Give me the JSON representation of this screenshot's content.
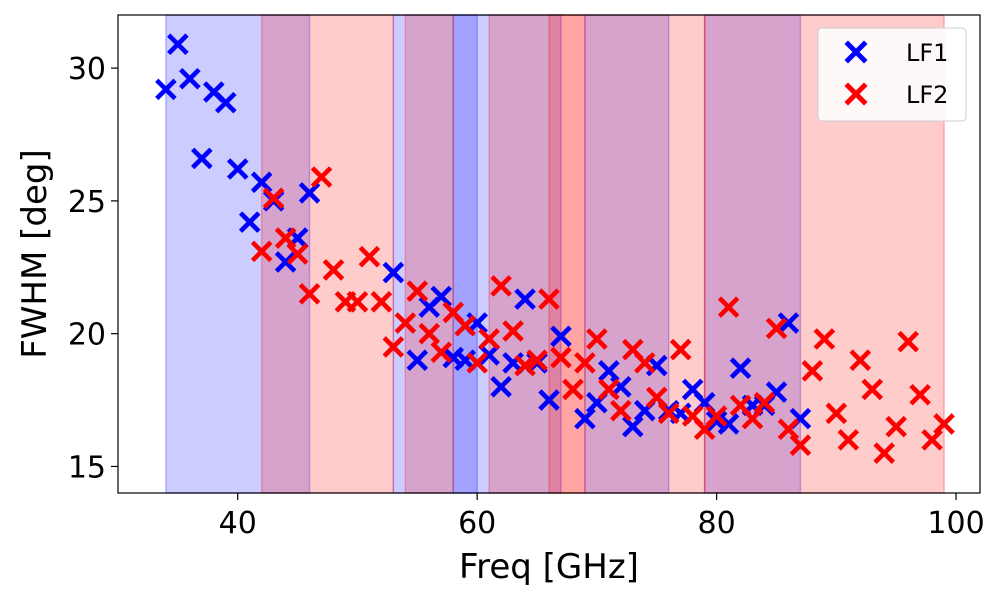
{
  "chart_data": {
    "type": "scatter",
    "title": "",
    "xlabel": "Freq [GHz]",
    "ylabel": "FWHM [deg]",
    "xlim": [
      30,
      102
    ],
    "ylim": [
      14,
      32
    ],
    "xticks": [
      40,
      60,
      80,
      100
    ],
    "yticks": [
      15,
      20,
      25,
      30
    ],
    "grid": false,
    "legend_position": "top-right",
    "marker": "X",
    "colors": {
      "LF1": "#0000ff",
      "LF2": "#ff0000",
      "band_LF1": "#0000ff",
      "band_LF2": "#ff0000"
    },
    "bands": {
      "LF1": [
        [
          34,
          46
        ],
        [
          53,
          60
        ],
        [
          58,
          67
        ],
        [
          69,
          76
        ],
        [
          79,
          87
        ]
      ],
      "LF2": [
        [
          42,
          53
        ],
        [
          54,
          58
        ],
        [
          61,
          69
        ],
        [
          66,
          79
        ],
        [
          79,
          99
        ]
      ]
    },
    "series": [
      {
        "name": "LF1",
        "x": [
          34,
          35,
          36,
          37,
          38,
          39,
          40,
          41,
          42,
          43,
          44,
          45,
          46,
          53,
          55,
          56,
          57,
          58,
          59,
          60,
          61,
          62,
          63,
          64,
          65,
          66,
          67,
          69,
          70,
          71,
          72,
          73,
          74,
          75,
          76,
          77,
          78,
          79,
          80,
          81,
          82,
          83,
          84,
          85,
          86,
          87
        ],
        "y": [
          29.2,
          30.9,
          29.6,
          26.6,
          29.1,
          28.7,
          26.2,
          24.2,
          25.7,
          25.0,
          22.7,
          23.6,
          25.3,
          22.3,
          19.0,
          21.0,
          21.4,
          19.1,
          19.0,
          20.4,
          19.2,
          18.0,
          18.9,
          21.3,
          18.9,
          17.5,
          19.9,
          16.8,
          17.4,
          18.6,
          18.0,
          16.5,
          17.1,
          18.8,
          17.1,
          17.0,
          17.9,
          17.4,
          16.7,
          16.6,
          18.7,
          17.3,
          17.3,
          17.8,
          20.4,
          16.8
        ]
      },
      {
        "name": "LF2",
        "x": [
          42,
          43,
          44,
          45,
          46,
          47,
          48,
          49,
          50,
          51,
          52,
          53,
          54,
          55,
          56,
          57,
          58,
          59,
          60,
          61,
          62,
          63,
          64,
          65,
          66,
          67,
          68,
          69,
          70,
          71,
          72,
          73,
          74,
          75,
          76,
          77,
          78,
          79,
          80,
          81,
          82,
          83,
          84,
          85,
          86,
          87,
          88,
          89,
          90,
          91,
          92,
          93,
          94,
          95,
          96,
          97,
          98,
          99
        ],
        "y": [
          23.1,
          25.1,
          23.6,
          23.0,
          21.5,
          25.9,
          22.4,
          21.2,
          21.2,
          22.9,
          21.2,
          19.5,
          20.4,
          21.6,
          20.0,
          19.3,
          20.8,
          20.3,
          18.9,
          19.8,
          21.8,
          20.1,
          18.8,
          19.0,
          21.3,
          19.1,
          17.9,
          18.9,
          19.8,
          17.9,
          17.1,
          19.4,
          18.9,
          17.6,
          17.0,
          19.4,
          16.9,
          16.4,
          16.9,
          21.0,
          17.3,
          16.8,
          17.4,
          20.2,
          16.4,
          15.8,
          18.6,
          19.8,
          17.0,
          16.0,
          19.0,
          17.9,
          15.5,
          16.5,
          19.7,
          17.7,
          16.0,
          16.6
        ]
      }
    ],
    "legend": [
      {
        "label": "LF1"
      },
      {
        "label": "LF2"
      }
    ]
  }
}
